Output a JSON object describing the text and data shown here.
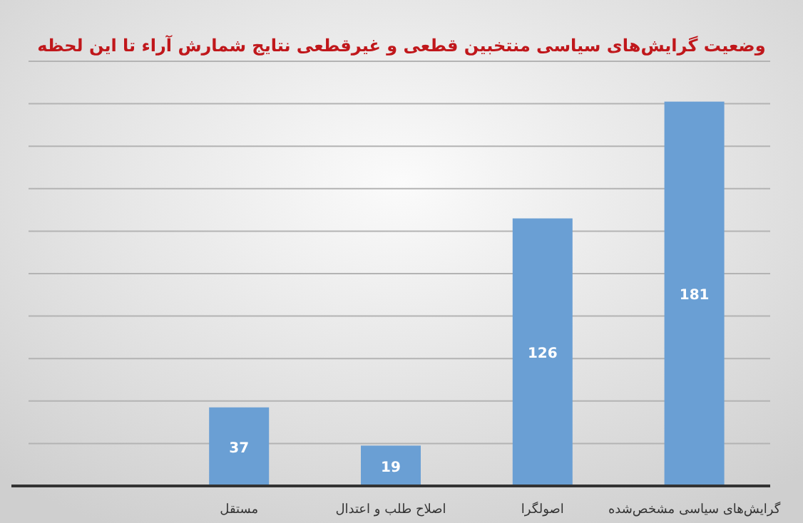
{
  "chart_data": {
    "type": "bar",
    "title": "وضعیت گرایش‌های سیاسی منتخبین قطعی و غیرقطعی نتایج شمارش آراء تا این لحظه",
    "categories": [
      null,
      "مستقل",
      "اصلاح طلب و اعتدال",
      "اصولگرا",
      "گرایش‌های سیاسی  مشخص‌شده"
    ],
    "values": [
      null,
      37,
      19,
      126,
      181
    ],
    "color": "#6a9fd4",
    "ylim": [
      0,
      200
    ],
    "yticks": [
      {
        "value": 0,
        "label": null
      },
      {
        "value": 20,
        "label": null
      },
      {
        "value": 40,
        "label": null
      },
      {
        "value": 60,
        "label": null
      },
      {
        "value": 80,
        "label": null
      },
      {
        "value": 100,
        "label": null
      },
      {
        "value": 120,
        "label": null
      },
      {
        "value": 140,
        "label": null
      },
      {
        "value": 160,
        "label": null
      },
      {
        "value": 180,
        "label": null
      },
      {
        "value": 200,
        "label": null
      }
    ],
    "grid": "y",
    "tick_labels": "x",
    "data_labels": true
  }
}
